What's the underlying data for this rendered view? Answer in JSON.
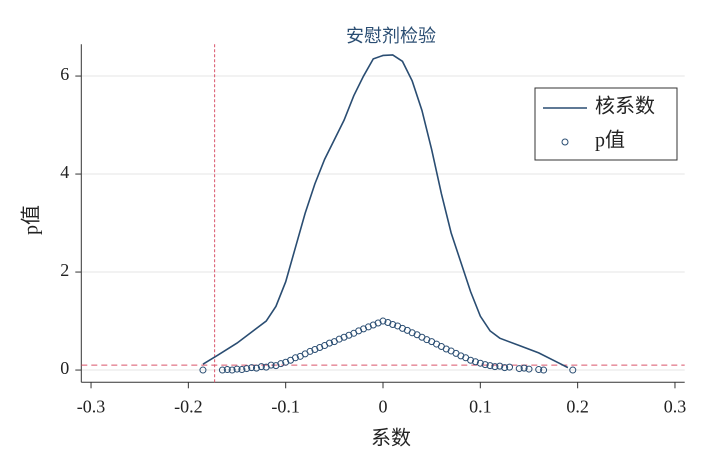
{
  "chart_data": {
    "type": "line",
    "title": "安慰剂检验",
    "x_label": "系数",
    "y_label": "p值",
    "xlim": [
      -0.31,
      0.31
    ],
    "ylim": [
      -0.25,
      6.65
    ],
    "xticks": [
      -0.3,
      -0.2,
      -0.1,
      0,
      0.1,
      0.2,
      0.3
    ],
    "yticks": [
      0,
      2,
      4,
      6
    ],
    "grid": true,
    "legend": "upper right",
    "reference_lines": {
      "x": -0.173,
      "y": 0.1,
      "color": "#d9546a"
    },
    "series": [
      {
        "name": "核系数",
        "type": "line",
        "color": "#2a4d72",
        "x": [
          -0.185,
          -0.17,
          -0.15,
          -0.13,
          -0.12,
          -0.11,
          -0.1,
          -0.09,
          -0.08,
          -0.07,
          -0.06,
          -0.05,
          -0.04,
          -0.03,
          -0.02,
          -0.01,
          0,
          0.01,
          0.02,
          0.03,
          0.04,
          0.05,
          0.06,
          0.07,
          0.08,
          0.09,
          0.1,
          0.11,
          0.12,
          0.14,
          0.16,
          0.18,
          0.19
        ],
        "values": [
          0.12,
          0.3,
          0.55,
          0.85,
          1.0,
          1.3,
          1.8,
          2.5,
          3.2,
          3.8,
          4.3,
          4.7,
          5.1,
          5.6,
          6.0,
          6.35,
          6.42,
          6.43,
          6.3,
          5.9,
          5.3,
          4.5,
          3.6,
          2.8,
          2.2,
          1.6,
          1.1,
          0.8,
          0.65,
          0.5,
          0.35,
          0.15,
          0.05
        ]
      },
      {
        "name": "p值",
        "type": "scatter",
        "color": "#2a4d72",
        "x": [
          -0.185,
          -0.165,
          -0.16,
          -0.155,
          -0.15,
          -0.145,
          -0.14,
          -0.135,
          -0.13,
          -0.125,
          -0.12,
          -0.115,
          -0.11,
          -0.105,
          -0.1,
          -0.095,
          -0.09,
          -0.085,
          -0.08,
          -0.075,
          -0.07,
          -0.065,
          -0.06,
          -0.055,
          -0.05,
          -0.045,
          -0.04,
          -0.035,
          -0.03,
          -0.025,
          -0.02,
          -0.015,
          -0.01,
          -0.005,
          0,
          0.005,
          0.01,
          0.015,
          0.02,
          0.025,
          0.03,
          0.035,
          0.04,
          0.045,
          0.05,
          0.055,
          0.06,
          0.065,
          0.07,
          0.075,
          0.08,
          0.085,
          0.09,
          0.095,
          0.1,
          0.105,
          0.11,
          0.115,
          0.12,
          0.125,
          0.13,
          0.14,
          0.145,
          0.15,
          0.16,
          0.165,
          0.195
        ],
        "values": [
          0.0,
          0.0,
          0.01,
          0.0,
          0.02,
          0.01,
          0.03,
          0.05,
          0.04,
          0.07,
          0.06,
          0.1,
          0.09,
          0.13,
          0.16,
          0.2,
          0.25,
          0.28,
          0.33,
          0.38,
          0.42,
          0.46,
          0.5,
          0.55,
          0.58,
          0.63,
          0.67,
          0.71,
          0.75,
          0.8,
          0.84,
          0.88,
          0.92,
          0.96,
          1.0,
          0.97,
          0.93,
          0.9,
          0.85,
          0.81,
          0.76,
          0.72,
          0.67,
          0.62,
          0.58,
          0.53,
          0.48,
          0.43,
          0.39,
          0.34,
          0.29,
          0.25,
          0.2,
          0.17,
          0.14,
          0.11,
          0.09,
          0.07,
          0.08,
          0.05,
          0.06,
          0.03,
          0.04,
          0.02,
          0.01,
          0.0,
          0.0
        ]
      }
    ]
  }
}
